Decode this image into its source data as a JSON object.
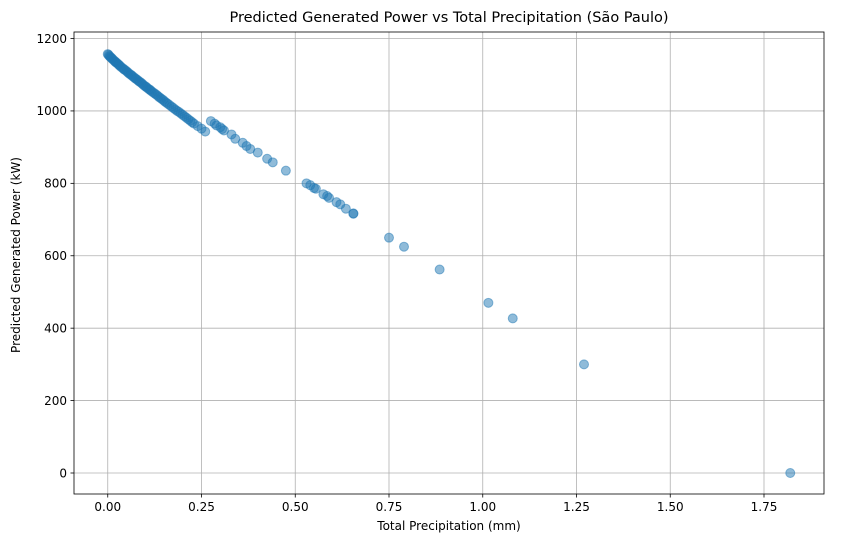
{
  "chart_data": {
    "type": "scatter",
    "title": "Predicted Generated Power vs Total Precipitation (São Paulo)",
    "xlabel": "Total Precipitation (mm)",
    "ylabel": "Predicted Generated Power (kW)",
    "xlim": [
      -0.09,
      1.91
    ],
    "ylim": [
      -58,
      1218
    ],
    "xticks": [
      0.0,
      0.25,
      0.5,
      0.75,
      1.0,
      1.25,
      1.5,
      1.75
    ],
    "xtick_labels": [
      "0.00",
      "0.25",
      "0.50",
      "0.75",
      "1.00",
      "1.25",
      "1.50",
      "1.75"
    ],
    "yticks": [
      0,
      200,
      400,
      600,
      800,
      1000,
      1200
    ],
    "ytick_labels": [
      "0",
      "200",
      "400",
      "600",
      "800",
      "1000",
      "1200"
    ],
    "grid": true,
    "marker_color": "#1f77b4",
    "marker_alpha": 0.5,
    "series": [
      {
        "x": [
          0.0,
          0.002,
          0.004,
          0.006,
          0.008,
          0.01,
          0.012,
          0.015,
          0.018,
          0.02,
          0.022,
          0.025,
          0.028,
          0.03,
          0.033,
          0.036,
          0.04,
          0.043,
          0.046,
          0.05,
          0.053,
          0.056,
          0.06,
          0.063,
          0.066,
          0.07,
          0.073,
          0.076,
          0.08,
          0.083,
          0.086,
          0.09,
          0.093,
          0.096,
          0.1,
          0.103,
          0.106,
          0.11,
          0.113,
          0.116,
          0.12,
          0.124,
          0.128,
          0.132,
          0.136,
          0.14,
          0.144,
          0.148,
          0.152,
          0.156,
          0.16,
          0.165,
          0.17,
          0.175,
          0.18,
          0.185,
          0.19,
          0.195,
          0.2,
          0.205,
          0.21,
          0.215,
          0.22,
          0.225,
          0.23,
          0.24,
          0.25,
          0.26,
          0.275,
          0.285,
          0.29,
          0.3,
          0.305,
          0.31,
          0.33,
          0.34,
          0.36,
          0.37,
          0.38,
          0.4,
          0.425,
          0.44,
          0.475,
          0.53,
          0.54,
          0.55,
          0.555,
          0.575,
          0.585,
          0.59,
          0.61,
          0.62,
          0.635,
          0.655,
          0.655,
          0.75,
          0.79,
          0.885,
          1.015,
          1.08,
          1.27,
          1.82
        ],
        "y": [
          1157,
          1155,
          1152,
          1150,
          1148,
          1146,
          1144,
          1141,
          1138,
          1136,
          1134,
          1132,
          1129,
          1127,
          1124,
          1121,
          1118,
          1115,
          1113,
          1110,
          1107,
          1104,
          1101,
          1099,
          1096,
          1093,
          1090,
          1088,
          1085,
          1082,
          1080,
          1077,
          1074,
          1071,
          1068,
          1066,
          1063,
          1060,
          1058,
          1055,
          1052,
          1049,
          1046,
          1043,
          1039,
          1036,
          1033,
          1030,
          1026,
          1023,
          1020,
          1016,
          1012,
          1008,
          1004,
          1000,
          997,
          993,
          989,
          985,
          981,
          977,
          973,
          969,
          965,
          958,
          951,
          943,
          972,
          965,
          960,
          955,
          950,
          946,
          935,
          923,
          912,
          903,
          895,
          885,
          868,
          858,
          835,
          800,
          795,
          787,
          785,
          770,
          765,
          760,
          748,
          742,
          730,
          717,
          716,
          650,
          625,
          562,
          470,
          427,
          300,
          0
        ]
      }
    ]
  }
}
